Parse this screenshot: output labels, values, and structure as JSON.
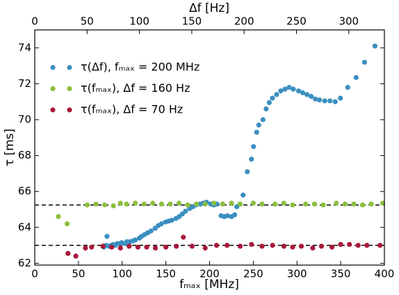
{
  "chart_data": {
    "type": "scatter",
    "xlabel": "fₘₐₓ [MHz]",
    "x2label": "Δf [Hz]",
    "ylabel": "τ [ms]",
    "xlim": [
      0,
      400
    ],
    "xticks": [
      0,
      50,
      100,
      150,
      200,
      250,
      300,
      350,
      400
    ],
    "x2lim": [
      0,
      334
    ],
    "x2ticks": [
      0,
      50,
      100,
      150,
      200,
      250,
      300
    ],
    "ylim": [
      61.9,
      75
    ],
    "yticks": [
      62,
      64,
      66,
      68,
      70,
      72,
      74
    ],
    "hlines": [
      65.25,
      63.0
    ],
    "legend": "upper left",
    "series": [
      {
        "name": "τ(Δf), fₘₐₓ = 200 MHz",
        "color": "#3a8fc0",
        "axis": "x2",
        "x": [
          66,
          68,
          69,
          71,
          73,
          75,
          77,
          79,
          81,
          83,
          86,
          88,
          91,
          94,
          96,
          100,
          102,
          105,
          108,
          111,
          115,
          118,
          121,
          125,
          128,
          131,
          135,
          138,
          141,
          144,
          148,
          151,
          154,
          158,
          161,
          164,
          168,
          171,
          174,
          178,
          181,
          184,
          188,
          191,
          193,
          196,
          199,
          203,
          207,
          209,
          212,
          214,
          218,
          221,
          224,
          227,
          231,
          235,
          239,
          243,
          247,
          252,
          256,
          260,
          264,
          268,
          272,
          277,
          282,
          287,
          292,
          299,
          307,
          315,
          325
        ],
        "values": [
          62.9,
          63.0,
          63.5,
          62.95,
          63.0,
          63.05,
          63.0,
          63.1,
          63.1,
          63.15,
          63.1,
          63.2,
          63.2,
          63.25,
          63.3,
          63.4,
          63.5,
          63.6,
          63.7,
          63.8,
          63.95,
          64.1,
          64.2,
          64.3,
          64.35,
          64.4,
          64.5,
          64.6,
          64.75,
          64.9,
          65.05,
          65.15,
          65.25,
          65.3,
          65.35,
          65.4,
          65.3,
          65.25,
          65.3,
          64.65,
          64.6,
          64.65,
          64.6,
          64.7,
          65.15,
          65.3,
          65.8,
          67.1,
          67.8,
          68.5,
          69.3,
          69.7,
          70.0,
          70.6,
          70.95,
          71.2,
          71.4,
          71.6,
          71.7,
          71.8,
          71.7,
          71.6,
          71.5,
          71.4,
          71.3,
          71.15,
          71.1,
          71.05,
          71.05,
          71.0,
          71.2,
          71.8,
          72.35,
          73.2,
          74.1
        ]
      },
      {
        "name": "τ(fₘₐₓ), Δf = 160 Hz",
        "color": "#8cbf3f",
        "x": [
          27,
          37,
          60,
          70,
          80,
          90,
          98,
          105,
          115,
          125,
          135,
          145,
          155,
          165,
          175,
          185,
          195,
          205,
          215,
          225,
          235,
          250,
          260,
          275,
          285,
          295,
          310,
          320,
          330,
          345,
          355,
          365,
          375,
          385,
          398
        ],
        "values": [
          64.6,
          64.2,
          65.25,
          65.3,
          65.25,
          65.2,
          65.35,
          65.3,
          65.35,
          65.3,
          65.35,
          65.3,
          65.3,
          65.35,
          65.25,
          65.3,
          65.3,
          65.35,
          65.3,
          65.35,
          65.3,
          65.35,
          65.3,
          65.3,
          65.35,
          65.25,
          65.3,
          65.3,
          65.25,
          65.35,
          65.3,
          65.3,
          65.25,
          65.3,
          65.35
        ]
      },
      {
        "name": "τ(fₘₐₓ), Δf = 70 Hz",
        "color": "#a8183a",
        "x": [
          38,
          47,
          58,
          65,
          78,
          88,
          98,
          108,
          118,
          128,
          138,
          150,
          162,
          170,
          180,
          195,
          208,
          220,
          235,
          248,
          260,
          272,
          285,
          295,
          305,
          318,
          328,
          340,
          350,
          360,
          370,
          380,
          395
        ],
        "values": [
          62.55,
          62.4,
          62.85,
          62.9,
          62.95,
          62.9,
          62.85,
          62.95,
          62.9,
          62.9,
          62.85,
          62.9,
          62.95,
          63.45,
          62.95,
          62.85,
          63.0,
          63.0,
          62.95,
          63.05,
          62.95,
          63.0,
          62.95,
          62.9,
          62.95,
          62.85,
          62.95,
          62.9,
          63.05,
          63.05,
          63.0,
          63.0,
          63.0
        ]
      }
    ]
  }
}
